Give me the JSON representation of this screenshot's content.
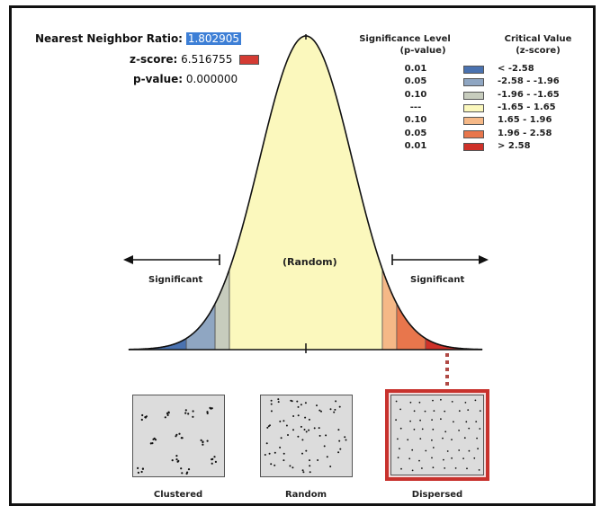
{
  "stats": {
    "nnr_label": "Nearest Neighbor Ratio:",
    "nnr_value": "1.802905",
    "z_label": "z-score:",
    "z_value": "6.516755",
    "z_swatch_color": "#d43b33",
    "p_label": "p-value:",
    "p_value": "0.000000"
  },
  "legend": {
    "sig_header_1": "Significance Level",
    "sig_header_2": "(p-value)",
    "crit_header_1": "Critical Value",
    "crit_header_2": "(z-score)",
    "rows": [
      {
        "p": "0.01",
        "z": "< -2.58",
        "color": "#4a72b0"
      },
      {
        "p": "0.05",
        "z": "-2.58 - -1.96",
        "color": "#8fa6c2"
      },
      {
        "p": "0.10",
        "z": "-1.96 - -1.65",
        "color": "#c7ccbd"
      },
      {
        "p": "---",
        "z": "-1.65 - 1.65",
        "color": "#fbf8bd"
      },
      {
        "p": "0.10",
        "z": "1.65 - 1.96",
        "color": "#f5b887"
      },
      {
        "p": "0.05",
        "z": "1.96 - 2.58",
        "color": "#e8764c"
      },
      {
        "p": "0.01",
        "z": "> 2.58",
        "color": "#cf3129"
      }
    ]
  },
  "curve": {
    "random_label": "(Random)",
    "left_label": "Significant",
    "right_label": "Significant"
  },
  "panels": {
    "clustered": "Clustered",
    "random": "Random",
    "dispersed": "Dispersed",
    "selected": "Dispersed"
  }
}
